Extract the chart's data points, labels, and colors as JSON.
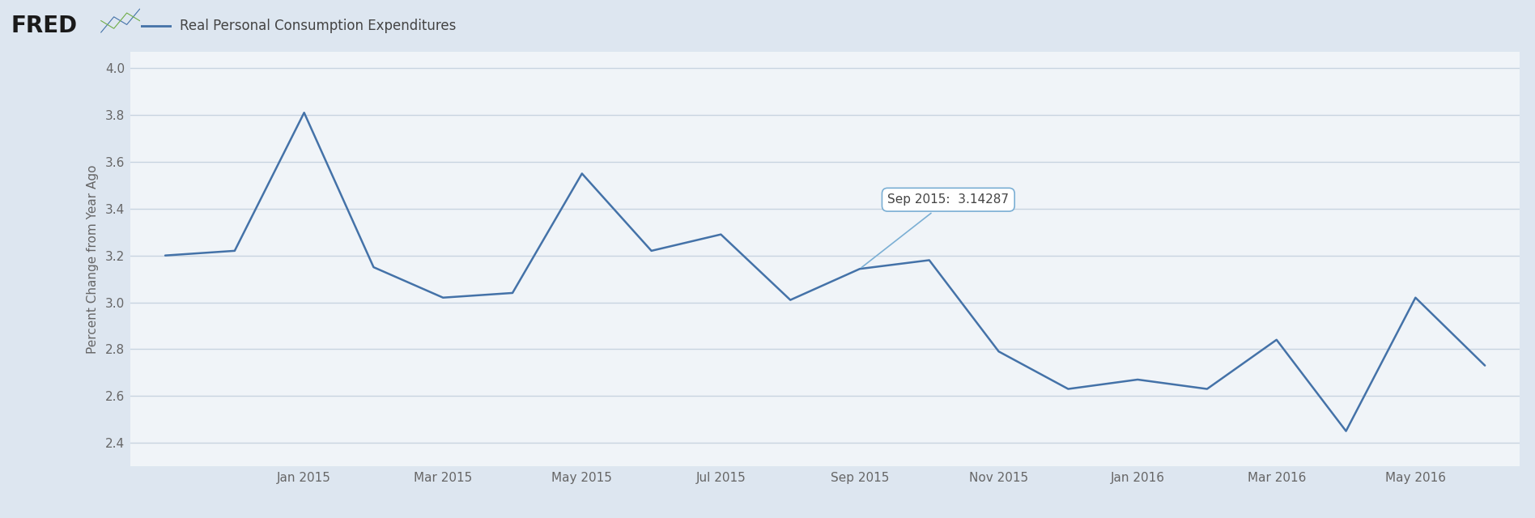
{
  "title": "Real Personal Consumption Expenditures",
  "ylabel": "Percent Change from Year Ago",
  "line_color": "#4472a8",
  "header_bg_color": "#cdd8e8",
  "plot_bg_color": "#dde6f0",
  "chart_area_bg": "#f0f4f8",
  "grid_color": "#c8d4e0",
  "yticks": [
    2.4,
    2.6,
    2.8,
    3.0,
    3.2,
    3.4,
    3.6,
    3.8,
    4.0
  ],
  "ylim": [
    2.3,
    4.07
  ],
  "values": [
    3.2,
    3.22,
    3.81,
    3.15,
    3.02,
    3.04,
    3.55,
    3.22,
    3.29,
    3.01,
    3.14287,
    3.18,
    2.79,
    2.63,
    2.67,
    2.63,
    2.84,
    2.45,
    3.02,
    2.73
  ],
  "xtick_labels": [
    "Jan 2015",
    "Mar 2015",
    "May 2015",
    "Jul 2015",
    "Sep 2015",
    "Nov 2015",
    "Jan 2016",
    "Mar 2016",
    "May 2016"
  ],
  "xtick_positions": [
    2,
    4,
    6,
    8,
    10,
    12,
    14,
    16,
    18
  ],
  "tooltip_idx": 10,
  "tooltip_text": "Sep 2015:  3.14287",
  "line_width": 1.8,
  "tick_fontsize": 11,
  "ylabel_fontsize": 11
}
